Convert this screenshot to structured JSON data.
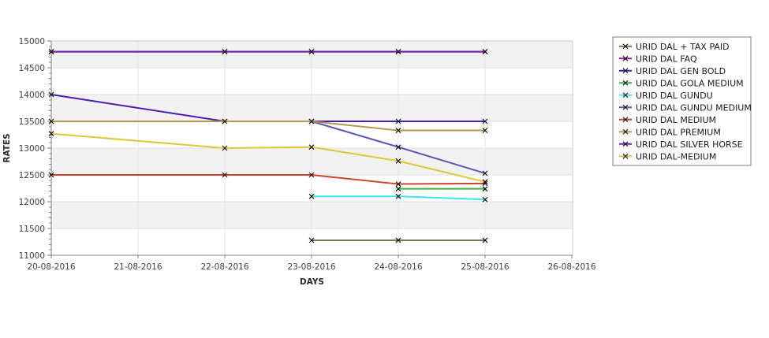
{
  "chart_data": {
    "type": "line",
    "title": "",
    "xlabel": "DAYS",
    "ylabel": "RATES",
    "x_categories": [
      "20-08-2016",
      "21-08-2016",
      "22-08-2016",
      "23-08-2016",
      "24-08-2016",
      "25-08-2016",
      "26-08-2016"
    ],
    "ylim": [
      11000,
      15000
    ],
    "ytick_major": 500,
    "ytick_minor": 100,
    "grid": true,
    "alternating_bands": true,
    "band_color": "#f2f2f2",
    "legend_position": "right",
    "marker": "x",
    "marker_color": "#111111",
    "series": [
      {
        "name": "URID DAL + TAX PAID",
        "color": "#7E7257",
        "points": [
          [
            "23-08-2016",
            11280
          ],
          [
            "24-08-2016",
            11280
          ],
          [
            "25-08-2016",
            11280
          ]
        ]
      },
      {
        "name": "URID DAL FAQ",
        "color": "#8C1E96",
        "hidden_behind": "URID DAL SILVER HORSE",
        "points": [
          [
            "20-08-2016",
            14800
          ],
          [
            "22-08-2016",
            14800
          ],
          [
            "23-08-2016",
            14800
          ],
          [
            "24-08-2016",
            14800
          ],
          [
            "25-08-2016",
            14800
          ]
        ]
      },
      {
        "name": "URID DAL GEN BOLD",
        "color": "#4A1CB4",
        "points": [
          [
            "20-08-2016",
            14000
          ],
          [
            "22-08-2016",
            13500
          ],
          [
            "23-08-2016",
            13500
          ],
          [
            "24-08-2016",
            13500
          ],
          [
            "25-08-2016",
            13500
          ]
        ]
      },
      {
        "name": "URID DAL GOLA MEDIUM",
        "color": "#3CB43C",
        "points": [
          [
            "24-08-2016",
            12240
          ],
          [
            "25-08-2016",
            12240
          ]
        ]
      },
      {
        "name": "URID DAL GUNDU",
        "color": "#3BE6F2",
        "points": [
          [
            "23-08-2016",
            12100
          ],
          [
            "24-08-2016",
            12100
          ],
          [
            "25-08-2016",
            12040
          ]
        ]
      },
      {
        "name": "URID DAL GUNDU MEDIUM",
        "color": "#5C58B8",
        "points": [
          [
            "23-08-2016",
            13500
          ],
          [
            "24-08-2016",
            13020
          ],
          [
            "25-08-2016",
            12530
          ]
        ]
      },
      {
        "name": "URID DAL MEDIUM",
        "color": "#CE4327",
        "points": [
          [
            "20-08-2016",
            12500
          ],
          [
            "22-08-2016",
            12500
          ],
          [
            "23-08-2016",
            12500
          ],
          [
            "24-08-2016",
            12330
          ],
          [
            "25-08-2016",
            12340
          ]
        ]
      },
      {
        "name": "URID DAL PREMIUM",
        "color": "#B3984E",
        "points": [
          [
            "20-08-2016",
            13500
          ],
          [
            "22-08-2016",
            13500
          ],
          [
            "23-08-2016",
            13500
          ],
          [
            "24-08-2016",
            13330
          ],
          [
            "25-08-2016",
            13330
          ]
        ]
      },
      {
        "name": "URID DAL SILVER HORSE",
        "color": "#6A1FA8",
        "points": [
          [
            "20-08-2016",
            14800
          ],
          [
            "22-08-2016",
            14800
          ],
          [
            "23-08-2016",
            14800
          ],
          [
            "24-08-2016",
            14800
          ],
          [
            "25-08-2016",
            14800
          ]
        ]
      },
      {
        "name": "URID DAL-MEDIUM",
        "color": "#DCC838",
        "points": [
          [
            "20-08-2016",
            13270
          ],
          [
            "22-08-2016",
            13000
          ],
          [
            "23-08-2016",
            13020
          ],
          [
            "24-08-2016",
            12760
          ],
          [
            "25-08-2016",
            12370
          ]
        ]
      }
    ]
  },
  "style_colors": {
    "plot_border": "#cccccc",
    "axis_line": "#808080",
    "grid_vertical": "#e6e6e6",
    "grid_horizontal": "#e0e0e0",
    "tick_label": "#3f3f3f",
    "axis_title": "#2b2b2b",
    "legend_border": "#7f7f7f",
    "legend_text": "#1a1a1a"
  }
}
